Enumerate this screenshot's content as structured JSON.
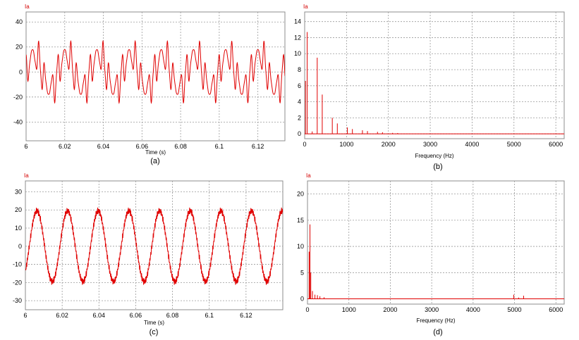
{
  "chart_data": [
    {
      "id": "a",
      "type": "line",
      "signal_label": "Ia",
      "xlabel": "Time (s)",
      "caption": "(a)",
      "xlim": [
        6.0,
        6.134
      ],
      "ylim": [
        -55,
        48
      ],
      "xticks": [
        6,
        6.02,
        6.04,
        6.06,
        6.08,
        6.1,
        6.12
      ],
      "xtick_labels": [
        "6",
        "6.02",
        "6.04",
        "6.06",
        "6.08",
        "6.1",
        "6.12"
      ],
      "yticks": [
        40,
        20,
        0,
        -20,
        -40
      ],
      "ytick_labels": [
        "40",
        "20",
        "0",
        "-20",
        "-40"
      ],
      "grid": true,
      "series": [
        {
          "waveform": "harmonic-rich periodic current",
          "fundamental_hz": 60,
          "harmonics": [
            {
              "order": 1,
              "amplitude": 13.5,
              "phase": 0.0
            },
            {
              "order": 5,
              "amplitude": 9.5,
              "phase": 1.9
            },
            {
              "order": 7,
              "amplitude": 5.0,
              "phase": 2.6
            },
            {
              "order": 11,
              "amplitude": 2.0,
              "phase": 0.6
            },
            {
              "order": 13,
              "amplitude": 1.3,
              "phase": 1.2
            }
          ]
        }
      ]
    },
    {
      "id": "b",
      "type": "bar",
      "signal_label": "Ia",
      "xlabel": "Frequency (Hz)",
      "caption": "(b)",
      "xlim": [
        0,
        6200
      ],
      "ylim": [
        -0.6,
        15.2
      ],
      "xticks": [
        0,
        1000,
        2000,
        3000,
        4000,
        5000,
        6000
      ],
      "xtick_labels": [
        "0",
        "1000",
        "2000",
        "3000",
        "4000",
        "5000",
        "6000"
      ],
      "yticks": [
        14,
        12,
        10,
        8,
        6,
        4,
        2,
        0
      ],
      "ytick_labels": [
        "14",
        "12",
        "10",
        "8",
        "6",
        "4",
        "2",
        "0"
      ],
      "grid": true,
      "series": [
        {
          "x": [
            20,
            60,
            180,
            300,
            420,
            660,
            780,
            1020,
            1140,
            1380,
            1500,
            1740,
            1860,
            2100,
            2220
          ],
          "y": [
            6.6,
            12.7,
            0.3,
            9.5,
            4.9,
            2.0,
            1.3,
            0.8,
            0.6,
            0.45,
            0.35,
            0.25,
            0.2,
            0.12,
            0.1
          ]
        }
      ]
    },
    {
      "id": "c",
      "type": "line",
      "signal_label": "Ia",
      "xlabel": "Time (s)",
      "caption": "(c)",
      "xlim": [
        6.0,
        6.14
      ],
      "ylim": [
        -35,
        36
      ],
      "xticks": [
        6,
        6.02,
        6.04,
        6.06,
        6.08,
        6.1,
        6.12
      ],
      "xtick_labels": [
        "6",
        "6.02",
        "6.04",
        "6.06",
        "6.08",
        "6.1",
        "6.12"
      ],
      "yticks": [
        30,
        20,
        10,
        0,
        -10,
        -20,
        -30
      ],
      "ytick_labels": [
        "30",
        "20",
        "10",
        "0",
        "-10",
        "-20",
        "-30"
      ],
      "grid": true,
      "series": [
        {
          "waveform": "near-sinusoidal current with switching ripple",
          "fundamental_hz": 60,
          "amplitude": 19.5,
          "phase": -0.8
        }
      ]
    },
    {
      "id": "d",
      "type": "bar",
      "signal_label": "Ia",
      "xlabel": "Frequency (Hz)",
      "caption": "(d)",
      "xlim": [
        0,
        6200
      ],
      "ylim": [
        -1,
        22.5
      ],
      "xticks": [
        0,
        1000,
        2000,
        3000,
        4000,
        5000,
        6000
      ],
      "xtick_labels": [
        "0",
        "1000",
        "2000",
        "3000",
        "4000",
        "5000",
        "6000"
      ],
      "yticks": [
        20,
        15,
        10,
        5,
        0
      ],
      "ytick_labels": [
        "20",
        "15",
        "10",
        "5",
        "0"
      ],
      "grid": true,
      "series": [
        {
          "x": [
            40,
            60,
            80,
            120,
            180,
            240,
            300,
            400,
            4980,
            5100,
            5220
          ],
          "y": [
            9.0,
            14.2,
            5.0,
            1.5,
            0.8,
            0.7,
            0.5,
            0.3,
            0.8,
            0.25,
            0.6
          ]
        }
      ]
    }
  ]
}
